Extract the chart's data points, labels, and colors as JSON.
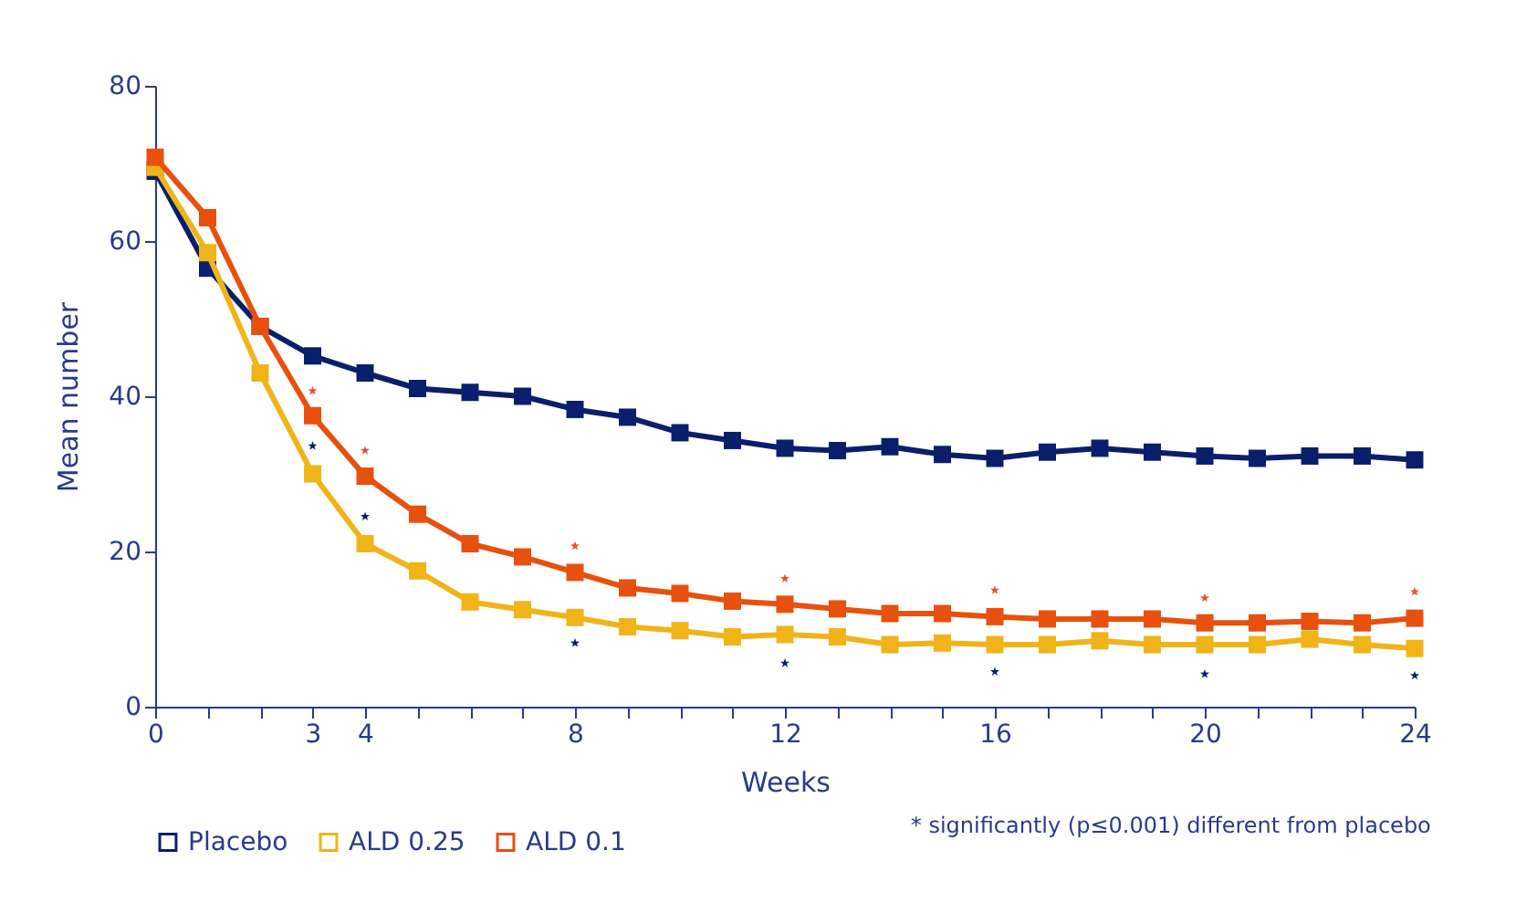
{
  "chart_data": {
    "type": "line",
    "xlabel": "Weeks",
    "ylabel": "Mean number",
    "x": [
      0,
      1,
      2,
      3,
      4,
      5,
      6,
      7,
      8,
      9,
      10,
      11,
      12,
      13,
      14,
      15,
      16,
      17,
      18,
      19,
      20,
      21,
      22,
      23,
      24
    ],
    "xlim": [
      0,
      24
    ],
    "xticks": [
      0,
      {
        "value": 1,
        "label": null
      },
      {
        "value": 2,
        "label": null
      },
      3,
      4,
      {
        "value": 5,
        "label": null
      },
      {
        "value": 6,
        "label": null
      },
      {
        "value": 7,
        "label": null
      },
      8,
      {
        "value": 9,
        "label": null
      },
      {
        "value": 10,
        "label": null
      },
      {
        "value": 11,
        "label": null
      },
      12,
      {
        "value": 13,
        "label": null
      },
      {
        "value": 14,
        "label": null
      },
      {
        "value": 15,
        "label": null
      },
      16,
      {
        "value": 17,
        "label": null
      },
      {
        "value": 18,
        "label": null
      },
      {
        "value": 19,
        "label": null
      },
      20,
      {
        "value": 21,
        "label": null
      },
      {
        "value": 22,
        "label": null
      },
      {
        "value": 23,
        "label": null
      },
      24
    ],
    "ylim": [
      0,
      80
    ],
    "yticks": [
      0,
      20,
      40,
      60,
      80
    ],
    "grid": false,
    "legend": "bottom",
    "marker": "square",
    "line_style": "solid",
    "series": [
      {
        "name": "Placebo",
        "color": "#0a1f6b",
        "values": [
          69,
          56.5,
          49,
          45.2,
          43,
          41,
          40.5,
          40,
          38.3,
          37.3,
          35.3,
          34.3,
          33.3,
          33,
          33.5,
          32.5,
          32,
          32.8,
          33.3,
          32.8,
          32.3,
          32,
          32.3,
          32.3,
          31.8
        ]
      },
      {
        "name": "ALD 0.25",
        "color": "#f0b418",
        "values": [
          69.5,
          58.5,
          43,
          30,
          21,
          17.5,
          13.5,
          12.5,
          11.5,
          10.3,
          9.8,
          9,
          9.3,
          9,
          8,
          8.2,
          8,
          8,
          8.5,
          8,
          8,
          8,
          8.7,
          8,
          7.5
        ]
      },
      {
        "name": "ALD 0.1",
        "color": "#e8500e",
        "values": [
          70.8,
          63,
          49,
          37.5,
          29.7,
          24.8,
          21,
          19.3,
          17.3,
          15.3,
          14.6,
          13.6,
          13.2,
          12.6,
          12,
          12,
          11.6,
          11.3,
          11.3,
          11.3,
          10.8,
          10.8,
          11,
          10.8,
          11.4
        ]
      },
      {
        "type": "scatter",
        "marker": "star",
        "color": "#e8502e",
        "x": [
          3,
          4,
          8,
          12,
          16,
          20,
          24
        ],
        "values": [
          40.7,
          33,
          20.7,
          16.5,
          15,
          14,
          14.8
        ]
      },
      {
        "type": "scatter",
        "marker": "star",
        "color": "#0a1f6b",
        "x": [
          3,
          4,
          8,
          12,
          16,
          20,
          24
        ],
        "values": [
          33.6,
          24.5,
          8.2,
          5.6,
          4.5,
          4.2,
          4
        ]
      }
    ],
    "annotations": [
      "* significantly (p≤0.001) different from placebo"
    ]
  }
}
